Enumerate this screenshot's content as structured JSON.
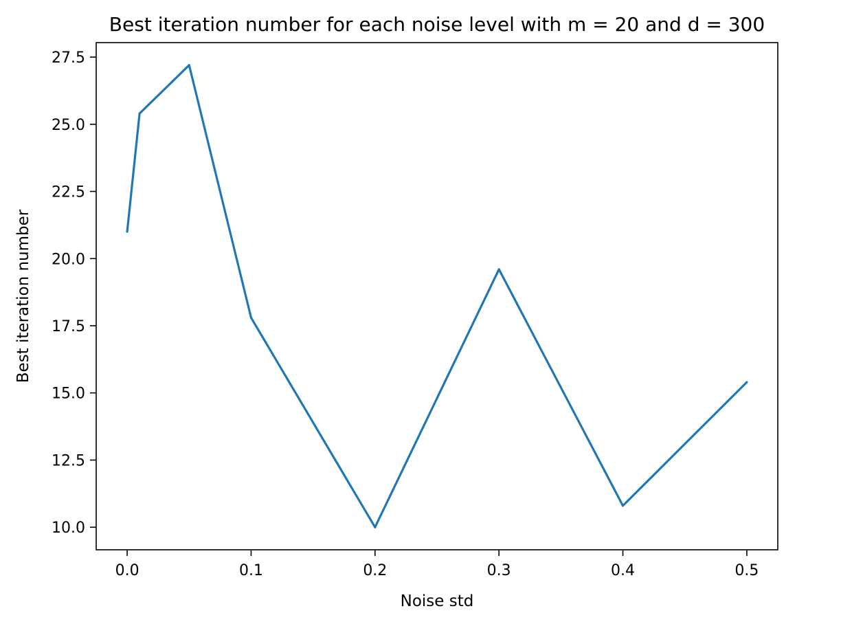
{
  "chart_data": {
    "type": "line",
    "title": "Best iteration number for each noise level with m = 20 and d = 300",
    "xlabel": "Noise std",
    "ylabel": "Best iteration number",
    "xlim": [
      -0.025,
      0.525
    ],
    "ylim": [
      9.16,
      28.04
    ],
    "x_ticks": [
      0.0,
      0.1,
      0.2,
      0.3,
      0.4,
      0.5
    ],
    "x_tick_labels": [
      "0.0",
      "0.1",
      "0.2",
      "0.3",
      "0.4",
      "0.5"
    ],
    "y_ticks": [
      10.0,
      12.5,
      15.0,
      17.5,
      20.0,
      22.5,
      25.0,
      27.5
    ],
    "y_tick_labels": [
      "10.0",
      "12.5",
      "15.0",
      "17.5",
      "20.0",
      "22.5",
      "25.0",
      "27.5"
    ],
    "grid": false,
    "legend": "none",
    "series": [
      {
        "color": "#1f77b4",
        "x": [
          0.0,
          0.01,
          0.05,
          0.1,
          0.2,
          0.3,
          0.4,
          0.5
        ],
        "y": [
          21.0,
          25.4,
          27.2,
          17.8,
          10.0,
          19.6,
          10.8,
          15.4
        ]
      }
    ]
  }
}
